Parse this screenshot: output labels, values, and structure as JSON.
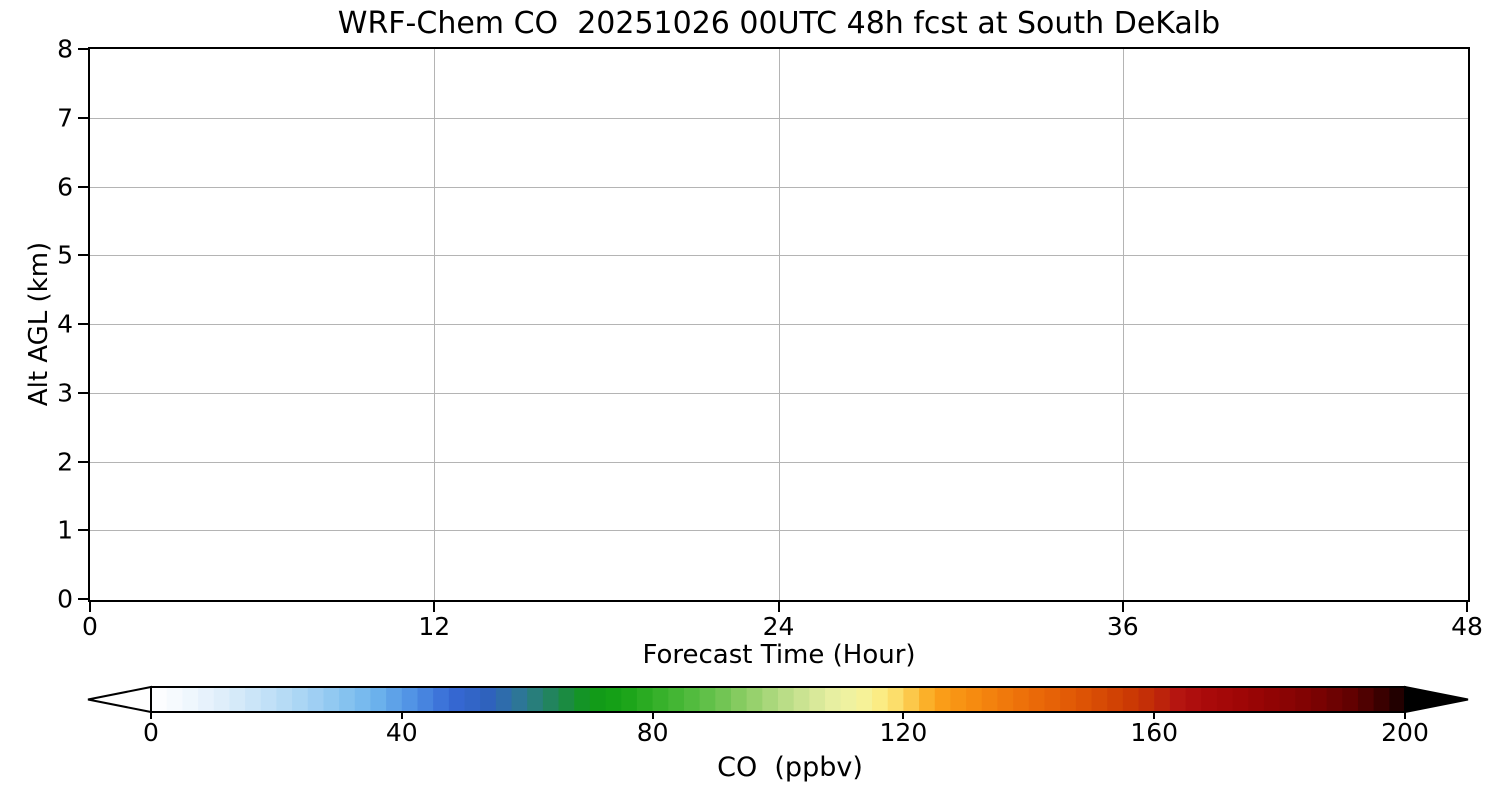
{
  "chart_data": {
    "type": "heatmap",
    "title": "WRF-Chem CO  20251026 00UTC 48h fcst at South DeKalb",
    "xlabel": "Forecast Time (Hour)",
    "ylabel": "Alt AGL (km)",
    "xlim": [
      0,
      48
    ],
    "ylim": [
      0,
      8
    ],
    "x_ticks": [
      0,
      12,
      24,
      36,
      48
    ],
    "y_ticks": [
      0,
      1,
      2,
      3,
      4,
      5,
      6,
      7,
      8
    ],
    "grid": true,
    "values": [],
    "note_plot_area": "empty (no contour data rendered)",
    "colorbar": {
      "label": "CO  (ppbv)",
      "ticks": [
        0,
        40,
        80,
        120,
        160,
        200
      ],
      "range": [
        0,
        200
      ],
      "segment_step": 2.5,
      "extend_under_color": "#ffffff",
      "extend_over_color": "#000000",
      "stops": [
        [
          0,
          "#ffffff"
        ],
        [
          6,
          "#f0f7fd"
        ],
        [
          12,
          "#dcedfa"
        ],
        [
          18,
          "#c4e1f7"
        ],
        [
          24,
          "#aad5f4"
        ],
        [
          30,
          "#8cc6f0"
        ],
        [
          36,
          "#6cb2ec"
        ],
        [
          42,
          "#4e90e4"
        ],
        [
          48,
          "#3668d4"
        ],
        [
          54,
          "#2f62bc"
        ],
        [
          58,
          "#2e74a0"
        ],
        [
          62,
          "#268072"
        ],
        [
          66,
          "#1c8a44"
        ],
        [
          70,
          "#109818"
        ],
        [
          75,
          "#16a216"
        ],
        [
          80,
          "#30ae26"
        ],
        [
          85,
          "#4ab838"
        ],
        [
          90,
          "#68c24e"
        ],
        [
          95,
          "#8ece66"
        ],
        [
          100,
          "#b2da82"
        ],
        [
          105,
          "#d2e696"
        ],
        [
          109,
          "#e8f0a2"
        ],
        [
          113,
          "#f4f49e"
        ],
        [
          117,
          "#fcea7e"
        ],
        [
          120,
          "#fcd55e"
        ],
        [
          123,
          "#fbb62e"
        ],
        [
          126,
          "#fa9e18"
        ],
        [
          131,
          "#f68c10"
        ],
        [
          136,
          "#f07a0c"
        ],
        [
          141,
          "#ea6a08"
        ],
        [
          146,
          "#e25c06"
        ],
        [
          151,
          "#d84c05"
        ],
        [
          156,
          "#cc3a04"
        ],
        [
          160,
          "#c02a08"
        ],
        [
          164,
          "#b41410"
        ],
        [
          168,
          "#aa0a0a"
        ],
        [
          174,
          "#9e0606"
        ],
        [
          180,
          "#8e0404"
        ],
        [
          186,
          "#7a0202"
        ],
        [
          192,
          "#5e0101"
        ],
        [
          196,
          "#3c0000"
        ],
        [
          200,
          "#160000"
        ]
      ]
    }
  },
  "colors": {
    "grid": "#b4b4b4",
    "axis": "#000000",
    "background": "#ffffff"
  }
}
